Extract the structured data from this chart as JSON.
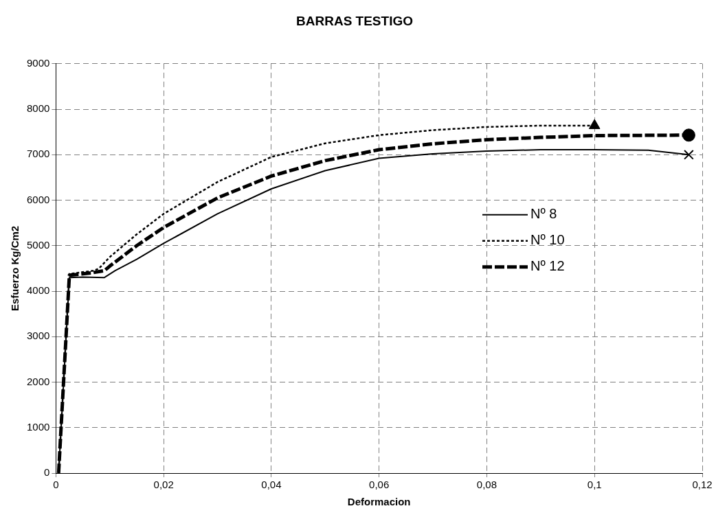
{
  "chart_data": {
    "type": "line",
    "title": "BARRAS TESTIGO",
    "xlabel": "Deformacion",
    "ylabel": "Esfuerzo Kg/Cm2",
    "xlim": [
      0,
      0.12
    ],
    "xticks": [
      {
        "value": 0,
        "label": "0"
      },
      {
        "value": 0.02,
        "label": "0,02"
      },
      {
        "value": 0.04,
        "label": "0,04"
      },
      {
        "value": 0.06,
        "label": "0,06"
      },
      {
        "value": 0.08,
        "label": "0,08"
      },
      {
        "value": 0.1,
        "label": "0,1"
      },
      {
        "value": 0.12,
        "label": "0,12"
      }
    ],
    "ylim": [
      0,
      9000
    ],
    "yticks": [
      0,
      1000,
      2000,
      3000,
      4000,
      5000,
      6000,
      7000,
      8000,
      9000
    ],
    "grid": true,
    "legend": "right",
    "series": [
      {
        "name": "Nº 8",
        "color": "#000000",
        "line_style": "solid",
        "x": [
          0.0005,
          0.0025,
          0.005,
          0.009,
          0.011,
          0.015,
          0.02,
          0.03,
          0.04,
          0.05,
          0.06,
          0.07,
          0.08,
          0.09,
          0.1,
          0.11,
          0.1175
        ],
        "values": [
          0,
          4300,
          4310,
          4300,
          4450,
          4700,
          5050,
          5700,
          6250,
          6650,
          6920,
          7020,
          7080,
          7110,
          7110,
          7100,
          7000
        ]
      },
      {
        "name": "Nº 10",
        "color": "#000000",
        "line_style": "dotted",
        "x": [
          0.0005,
          0.0025,
          0.007,
          0.008,
          0.01,
          0.015,
          0.02,
          0.03,
          0.04,
          0.05,
          0.06,
          0.07,
          0.08,
          0.09,
          0.1
        ],
        "values": [
          0,
          4380,
          4450,
          4500,
          4750,
          5250,
          5700,
          6400,
          6950,
          7250,
          7430,
          7540,
          7610,
          7640,
          7640
        ]
      },
      {
        "name": "Nº 12",
        "color": "#000000",
        "line_style": "dashed",
        "x": [
          0.0005,
          0.0025,
          0.0065,
          0.009,
          0.01,
          0.015,
          0.02,
          0.03,
          0.04,
          0.05,
          0.06,
          0.07,
          0.08,
          0.09,
          0.1,
          0.1175
        ],
        "values": [
          0,
          4350,
          4400,
          4450,
          4550,
          5000,
          5400,
          6050,
          6530,
          6870,
          7110,
          7240,
          7330,
          7380,
          7420,
          7430
        ]
      },
      {
        "type": "scatter",
        "color": "#000000",
        "marker": "cross",
        "x": [
          0.1175
        ],
        "values": [
          7000
        ]
      },
      {
        "type": "scatter",
        "color": "#000000",
        "marker": "triangle",
        "x": [
          0.1
        ],
        "values": [
          7640
        ]
      },
      {
        "type": "scatter",
        "color": "#000000",
        "marker": "circle",
        "x": [
          0.1175
        ],
        "values": [
          7430
        ]
      }
    ]
  }
}
